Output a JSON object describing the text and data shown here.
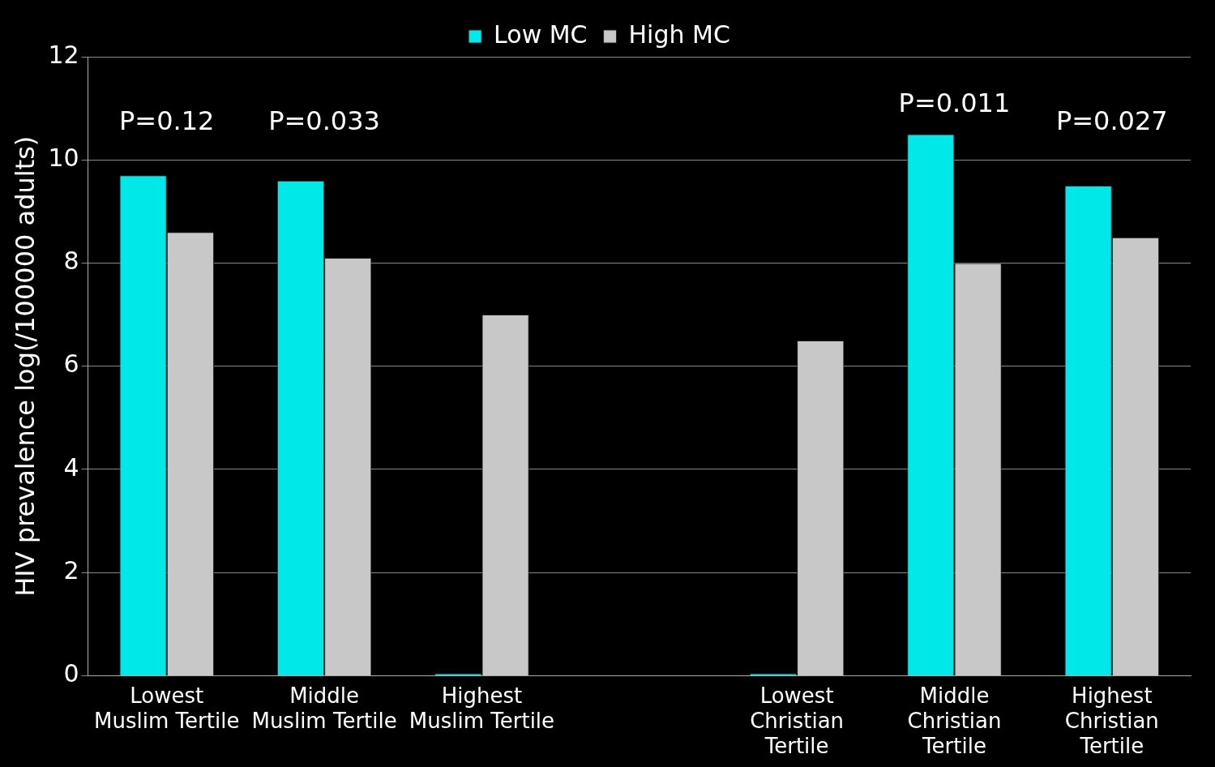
{
  "chart_data": {
    "type": "bar",
    "ylabel": "HIV prevalence log(/100000 adults)",
    "categories": [
      "Lowest Muslim Tertile",
      "Middle Muslim Tertile",
      "Highest Muslim Tertile",
      null,
      "Lowest Christian Tertile",
      "Middle Christian Tertile",
      "Highest Christian Tertile"
    ],
    "series": [
      {
        "name": "Low MC",
        "color": "#00e8e8",
        "values": [
          9.7,
          9.6,
          0,
          null,
          0,
          10.5,
          9.5
        ]
      },
      {
        "name": "High MC",
        "color": "#c8c8c8",
        "values": [
          8.6,
          8.1,
          7.0,
          null,
          6.5,
          8.0,
          8.5
        ]
      }
    ],
    "ylim": [
      0,
      12
    ],
    "yticks": [
      0,
      2,
      4,
      6,
      8,
      10,
      12
    ],
    "grid": "y",
    "legend": "top",
    "annotations": [
      "P=0.12",
      "P=0.033",
      "P=0.011",
      "P=0.027"
    ]
  }
}
